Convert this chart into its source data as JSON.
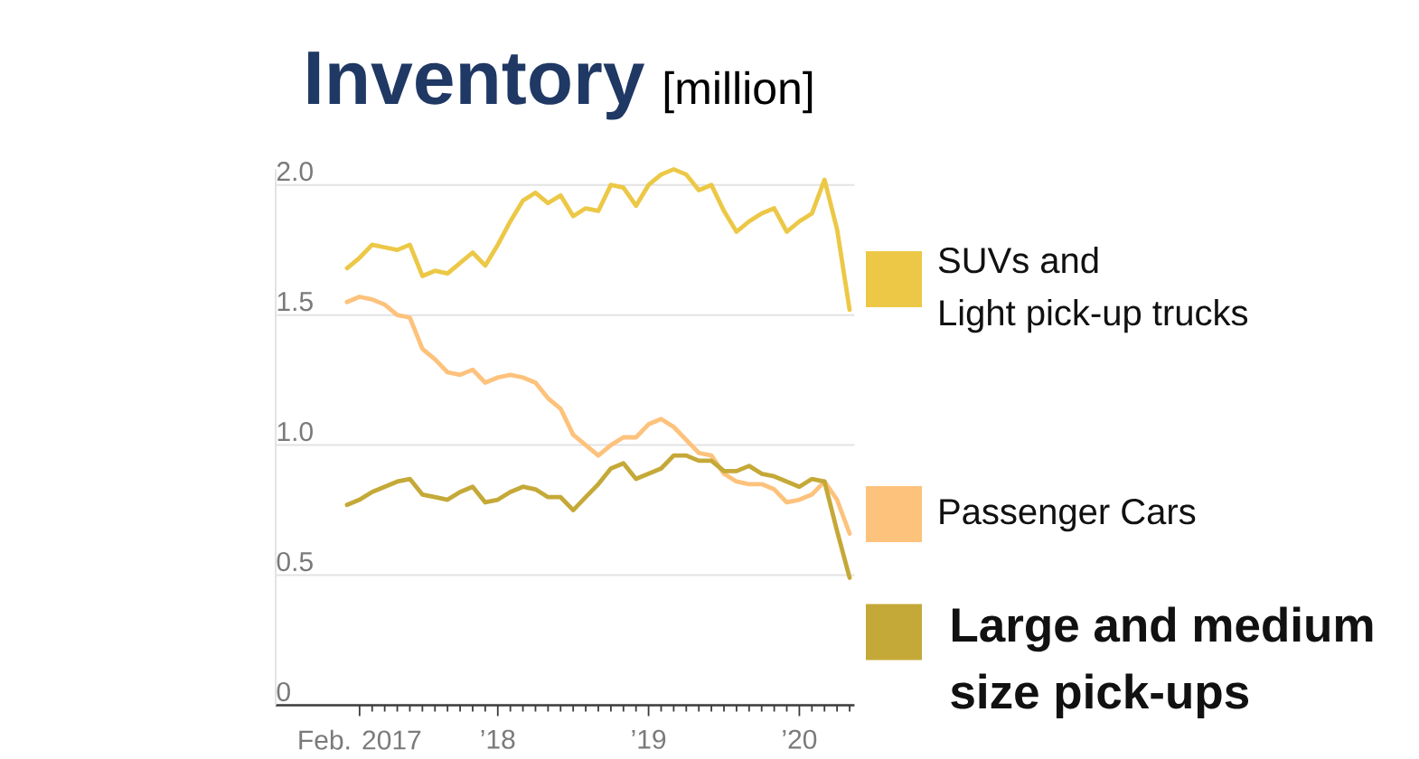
{
  "chart_data": {
    "type": "line",
    "title": "Inventory",
    "subtitle": "[million]",
    "x": [
      "2017-01",
      "2017-02",
      "2017-03",
      "2017-04",
      "2017-05",
      "2017-06",
      "2017-07",
      "2017-08",
      "2017-09",
      "2017-10",
      "2017-11",
      "2017-12",
      "2018-01",
      "2018-02",
      "2018-03",
      "2018-04",
      "2018-05",
      "2018-06",
      "2018-07",
      "2018-08",
      "2018-09",
      "2018-10",
      "2018-11",
      "2018-12",
      "2019-01",
      "2019-02",
      "2019-03",
      "2019-04",
      "2019-05",
      "2019-06",
      "2019-07",
      "2019-08",
      "2019-09",
      "2019-10",
      "2019-11",
      "2019-12",
      "2020-01",
      "2020-02",
      "2020-03",
      "2020-04",
      "2020-05"
    ],
    "series": [
      {
        "name": "SUVs and Light pick-up trucks",
        "color": "#ecc846",
        "values": [
          1.68,
          1.72,
          1.77,
          1.76,
          1.75,
          1.77,
          1.65,
          1.67,
          1.66,
          1.7,
          1.74,
          1.69,
          1.77,
          1.86,
          1.94,
          1.97,
          1.93,
          1.96,
          1.88,
          1.91,
          1.9,
          2.0,
          1.99,
          1.92,
          2.0,
          2.04,
          2.06,
          2.04,
          1.98,
          2.0,
          1.9,
          1.82,
          1.86,
          1.89,
          1.91,
          1.82,
          1.86,
          1.89,
          2.02,
          1.83,
          1.52
        ]
      },
      {
        "name": "Passenger Cars",
        "color": "#fdc27c",
        "values": [
          1.55,
          1.57,
          1.56,
          1.54,
          1.5,
          1.49,
          1.37,
          1.33,
          1.28,
          1.27,
          1.29,
          1.24,
          1.26,
          1.27,
          1.26,
          1.24,
          1.18,
          1.14,
          1.04,
          1.0,
          0.96,
          1.0,
          1.03,
          1.03,
          1.08,
          1.1,
          1.07,
          1.02,
          0.97,
          0.96,
          0.89,
          0.86,
          0.85,
          0.85,
          0.83,
          0.78,
          0.79,
          0.81,
          0.86,
          0.79,
          0.66
        ]
      },
      {
        "name": "Large and medium size pick-ups",
        "color": "#c5a938",
        "values": [
          0.77,
          0.79,
          0.82,
          0.84,
          0.86,
          0.87,
          0.81,
          0.8,
          0.79,
          0.82,
          0.84,
          0.78,
          0.79,
          0.82,
          0.84,
          0.83,
          0.8,
          0.8,
          0.75,
          0.8,
          0.85,
          0.91,
          0.93,
          0.87,
          0.89,
          0.91,
          0.96,
          0.96,
          0.94,
          0.94,
          0.9,
          0.9,
          0.92,
          0.89,
          0.88,
          0.86,
          0.84,
          0.87,
          0.86,
          0.67,
          0.49
        ]
      }
    ],
    "xlim": [
      "2016-07-11",
      "2020-05-13"
    ],
    "ylim": [
      0,
      2.06
    ],
    "xticks": [
      {
        "value": "2017-02",
        "label": "Feb. 2017"
      },
      {
        "value": "2017-03",
        "label": null
      },
      {
        "value": "2017-04",
        "label": null
      },
      {
        "value": "2017-05",
        "label": null
      },
      {
        "value": "2017-06",
        "label": null
      },
      {
        "value": "2017-07",
        "label": null
      },
      {
        "value": "2017-08",
        "label": null
      },
      {
        "value": "2017-09",
        "label": null
      },
      {
        "value": "2017-10",
        "label": null
      },
      {
        "value": "2017-11",
        "label": null
      },
      {
        "value": "2017-12",
        "label": null
      },
      {
        "value": "2018-01",
        "label": "’18"
      },
      {
        "value": "2018-02",
        "label": null
      },
      {
        "value": "2018-03",
        "label": null
      },
      {
        "value": "2018-04",
        "label": null
      },
      {
        "value": "2018-05",
        "label": null
      },
      {
        "value": "2018-06",
        "label": null
      },
      {
        "value": "2018-07",
        "label": null
      },
      {
        "value": "2018-08",
        "label": null
      },
      {
        "value": "2018-09",
        "label": null
      },
      {
        "value": "2018-10",
        "label": null
      },
      {
        "value": "2018-11",
        "label": null
      },
      {
        "value": "2018-12",
        "label": null
      },
      {
        "value": "2019-01",
        "label": "’19"
      },
      {
        "value": "2019-02",
        "label": null
      },
      {
        "value": "2019-03",
        "label": null
      },
      {
        "value": "2019-04",
        "label": null
      },
      {
        "value": "2019-05",
        "label": null
      },
      {
        "value": "2019-06",
        "label": null
      },
      {
        "value": "2019-07",
        "label": null
      },
      {
        "value": "2019-08",
        "label": null
      },
      {
        "value": "2019-09",
        "label": null
      },
      {
        "value": "2019-10",
        "label": null
      },
      {
        "value": "2019-11",
        "label": null
      },
      {
        "value": "2019-12",
        "label": null
      },
      {
        "value": "2020-01",
        "label": "’20"
      },
      {
        "value": "2020-02",
        "label": null
      },
      {
        "value": "2020-03",
        "label": null
      },
      {
        "value": "2020-04",
        "label": null
      },
      {
        "value": "2020-05",
        "label": null
      }
    ],
    "yticks": [
      0,
      0.5,
      {
        "value": 1,
        "label": "1.0"
      },
      1.5,
      {
        "value": 2,
        "label": "2.0"
      }
    ],
    "grid": "y",
    "legend": "right"
  }
}
